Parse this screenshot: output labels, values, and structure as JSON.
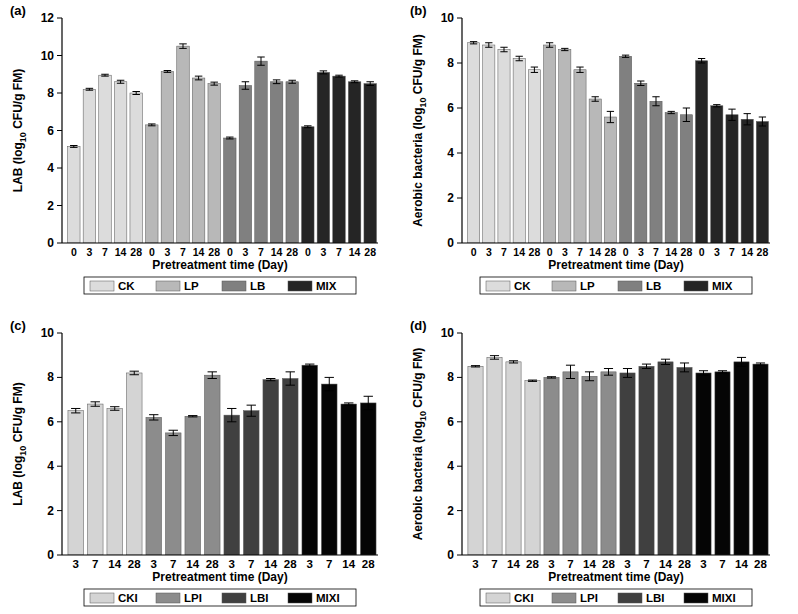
{
  "chart_data": [
    {
      "type": "bar",
      "title": "(a)",
      "x_label": "Pretreatment time (Day)",
      "y_label": "LAB (log10 CFU/g FM)",
      "categories": [
        "0",
        "3",
        "7",
        "14",
        "28",
        "0",
        "3",
        "7",
        "14",
        "28",
        "0",
        "3",
        "7",
        "14",
        "28",
        "0",
        "3",
        "7",
        "14",
        "28"
      ],
      "series": [
        {
          "name": "CK",
          "color": "#dcdcdc",
          "values": [
            5.15,
            8.2,
            8.95,
            8.6,
            8.0,
            null,
            null,
            null,
            null,
            null,
            null,
            null,
            null,
            null,
            null,
            null,
            null,
            null,
            null,
            null
          ],
          "errors": [
            0.05,
            0.05,
            0.05,
            0.08,
            0.08,
            null,
            null,
            null,
            null,
            null,
            null,
            null,
            null,
            null,
            null,
            null,
            null,
            null,
            null,
            null
          ]
        },
        {
          "name": "LP",
          "color": "#b8b8b8",
          "values": [
            null,
            null,
            null,
            null,
            null,
            6.3,
            9.15,
            10.5,
            8.8,
            8.5,
            null,
            null,
            null,
            null,
            null,
            null,
            null,
            null,
            null,
            null
          ],
          "errors": [
            null,
            null,
            null,
            null,
            null,
            0.05,
            0.05,
            0.12,
            0.1,
            0.08,
            null,
            null,
            null,
            null,
            null,
            null,
            null,
            null,
            null,
            null
          ]
        },
        {
          "name": "LB",
          "color": "#808080",
          "values": [
            null,
            null,
            null,
            null,
            null,
            null,
            null,
            null,
            null,
            null,
            5.6,
            8.4,
            9.7,
            8.6,
            8.6,
            null,
            null,
            null,
            null,
            null
          ],
          "errors": [
            null,
            null,
            null,
            null,
            null,
            null,
            null,
            null,
            null,
            null,
            0.05,
            0.2,
            0.22,
            0.1,
            0.08,
            null,
            null,
            null,
            null,
            null
          ]
        },
        {
          "name": "MIX",
          "color": "#252525",
          "values": [
            null,
            null,
            null,
            null,
            null,
            null,
            null,
            null,
            null,
            null,
            null,
            null,
            null,
            null,
            null,
            6.2,
            9.1,
            8.9,
            8.6,
            8.5
          ],
          "errors": [
            null,
            null,
            null,
            null,
            null,
            null,
            null,
            null,
            null,
            null,
            null,
            null,
            null,
            null,
            null,
            0.05,
            0.08,
            0.05,
            0.05,
            0.1
          ]
        }
      ],
      "ylim": [
        0,
        12
      ],
      "yticks": [
        0,
        2,
        4,
        6,
        8,
        10,
        12
      ],
      "grid": false,
      "legend": "bottom"
    },
    {
      "type": "bar",
      "title": "(b)",
      "x_label": "Pretreatment time (Day)",
      "y_label": "Aerobic bacteria (log10 CFU/g FM)",
      "categories": [
        "0",
        "3",
        "7",
        "14",
        "28",
        "0",
        "3",
        "7",
        "14",
        "28",
        "0",
        "3",
        "7",
        "14",
        "28",
        "0",
        "3",
        "7",
        "14",
        "28"
      ],
      "series": [
        {
          "name": "CK",
          "color": "#dcdcdc",
          "values": [
            8.9,
            8.8,
            8.6,
            8.2,
            7.7,
            null,
            null,
            null,
            null,
            null,
            null,
            null,
            null,
            null,
            null,
            null,
            null,
            null,
            null,
            null
          ],
          "errors": [
            0.05,
            0.1,
            0.1,
            0.1,
            0.12,
            null,
            null,
            null,
            null,
            null,
            null,
            null,
            null,
            null,
            null,
            null,
            null,
            null,
            null,
            null
          ]
        },
        {
          "name": "LP",
          "color": "#b8b8b8",
          "values": [
            null,
            null,
            null,
            null,
            null,
            8.8,
            8.6,
            7.7,
            6.4,
            5.6,
            null,
            null,
            null,
            null,
            null,
            null,
            null,
            null,
            null,
            null
          ],
          "errors": [
            null,
            null,
            null,
            null,
            null,
            0.1,
            0.05,
            0.12,
            0.1,
            0.25,
            null,
            null,
            null,
            null,
            null,
            null,
            null,
            null,
            null,
            null
          ]
        },
        {
          "name": "LB",
          "color": "#808080",
          "values": [
            null,
            null,
            null,
            null,
            null,
            null,
            null,
            null,
            null,
            null,
            8.3,
            7.1,
            6.3,
            5.8,
            5.7,
            null,
            null,
            null,
            null,
            null
          ],
          "errors": [
            null,
            null,
            null,
            null,
            null,
            null,
            null,
            null,
            null,
            null,
            0.05,
            0.1,
            0.2,
            0.05,
            0.3,
            null,
            null,
            null,
            null,
            null
          ]
        },
        {
          "name": "MIX",
          "color": "#252525",
          "values": [
            null,
            null,
            null,
            null,
            null,
            null,
            null,
            null,
            null,
            null,
            null,
            null,
            null,
            null,
            null,
            8.1,
            6.1,
            5.7,
            5.5,
            5.4
          ],
          "errors": [
            null,
            null,
            null,
            null,
            null,
            null,
            null,
            null,
            null,
            null,
            null,
            null,
            null,
            null,
            null,
            0.1,
            0.05,
            0.25,
            0.25,
            0.2
          ]
        }
      ],
      "ylim": [
        0,
        10
      ],
      "yticks": [
        0,
        2,
        4,
        6,
        8,
        10
      ],
      "grid": false,
      "legend": "bottom"
    },
    {
      "type": "bar",
      "title": "(c)",
      "x_label": "Pretreatment time (Day)",
      "y_label": "LAB (log10 CFU/g FM)",
      "categories": [
        "3",
        "7",
        "14",
        "28",
        "3",
        "7",
        "14",
        "28",
        "3",
        "7",
        "14",
        "28",
        "3",
        "7",
        "14",
        "28"
      ],
      "series": [
        {
          "name": "CKI",
          "color": "#d4d4d4",
          "values": [
            6.5,
            6.8,
            6.6,
            8.2,
            null,
            null,
            null,
            null,
            null,
            null,
            null,
            null,
            null,
            null,
            null,
            null
          ],
          "errors": [
            0.1,
            0.1,
            0.08,
            0.08,
            null,
            null,
            null,
            null,
            null,
            null,
            null,
            null,
            null,
            null,
            null,
            null
          ]
        },
        {
          "name": "LPI",
          "color": "#8c8c8c",
          "values": [
            null,
            null,
            null,
            null,
            6.2,
            5.5,
            6.25,
            8.1,
            null,
            null,
            null,
            null,
            null,
            null,
            null,
            null
          ],
          "errors": [
            null,
            null,
            null,
            null,
            0.12,
            0.12,
            0.03,
            0.15,
            null,
            null,
            null,
            null,
            null,
            null,
            null,
            null
          ]
        },
        {
          "name": "LBI",
          "color": "#404040",
          "values": [
            null,
            null,
            null,
            null,
            null,
            null,
            null,
            null,
            6.3,
            6.5,
            7.9,
            7.95,
            null,
            null,
            null,
            null
          ],
          "errors": [
            null,
            null,
            null,
            null,
            null,
            null,
            null,
            null,
            0.3,
            0.25,
            0.05,
            0.3,
            null,
            null,
            null,
            null
          ]
        },
        {
          "name": "MIXI",
          "color": "#050505",
          "values": [
            null,
            null,
            null,
            null,
            null,
            null,
            null,
            null,
            null,
            null,
            null,
            null,
            8.55,
            7.7,
            6.8,
            6.85
          ],
          "errors": [
            null,
            null,
            null,
            null,
            null,
            null,
            null,
            null,
            null,
            null,
            null,
            null,
            0.05,
            0.3,
            0.05,
            0.3
          ]
        }
      ],
      "ylim": [
        0,
        10
      ],
      "yticks": [
        0,
        2,
        4,
        6,
        8,
        10
      ],
      "grid": false,
      "legend": "bottom"
    },
    {
      "type": "bar",
      "title": "(d)",
      "x_label": "Pretreatment time (Day)",
      "y_label": "Aerobic bacteria (log10 CFU/g FM)",
      "categories": [
        "3",
        "7",
        "14",
        "28",
        "3",
        "7",
        "14",
        "28",
        "3",
        "7",
        "14",
        "28",
        "3",
        "7",
        "14",
        "28"
      ],
      "series": [
        {
          "name": "CKI",
          "color": "#d4d4d4",
          "values": [
            8.5,
            8.9,
            8.7,
            7.85,
            null,
            null,
            null,
            null,
            null,
            null,
            null,
            null,
            null,
            null,
            null,
            null
          ],
          "errors": [
            0.03,
            0.08,
            0.05,
            0.03,
            null,
            null,
            null,
            null,
            null,
            null,
            null,
            null,
            null,
            null,
            null,
            null
          ]
        },
        {
          "name": "LPI",
          "color": "#8c8c8c",
          "values": [
            null,
            null,
            null,
            null,
            8.0,
            8.25,
            8.05,
            8.25,
            null,
            null,
            null,
            null,
            null,
            null,
            null,
            null
          ],
          "errors": [
            null,
            null,
            null,
            null,
            0.03,
            0.3,
            0.2,
            0.15,
            null,
            null,
            null,
            null,
            null,
            null,
            null,
            null
          ]
        },
        {
          "name": "LBI",
          "color": "#404040",
          "values": [
            null,
            null,
            null,
            null,
            null,
            null,
            null,
            null,
            8.2,
            8.5,
            8.7,
            8.45,
            null,
            null,
            null,
            null
          ],
          "errors": [
            null,
            null,
            null,
            null,
            null,
            null,
            null,
            null,
            0.2,
            0.1,
            0.12,
            0.2,
            null,
            null,
            null,
            null
          ]
        },
        {
          "name": "MIXI",
          "color": "#050505",
          "values": [
            null,
            null,
            null,
            null,
            null,
            null,
            null,
            null,
            null,
            null,
            null,
            null,
            8.2,
            8.25,
            8.7,
            8.6
          ],
          "errors": [
            null,
            null,
            null,
            null,
            null,
            null,
            null,
            null,
            null,
            null,
            null,
            null,
            0.1,
            0.05,
            0.2,
            0.05
          ]
        }
      ],
      "ylim": [
        0,
        10
      ],
      "yticks": [
        0,
        2,
        4,
        6,
        8,
        10
      ],
      "grid": false,
      "legend": "bottom"
    }
  ]
}
